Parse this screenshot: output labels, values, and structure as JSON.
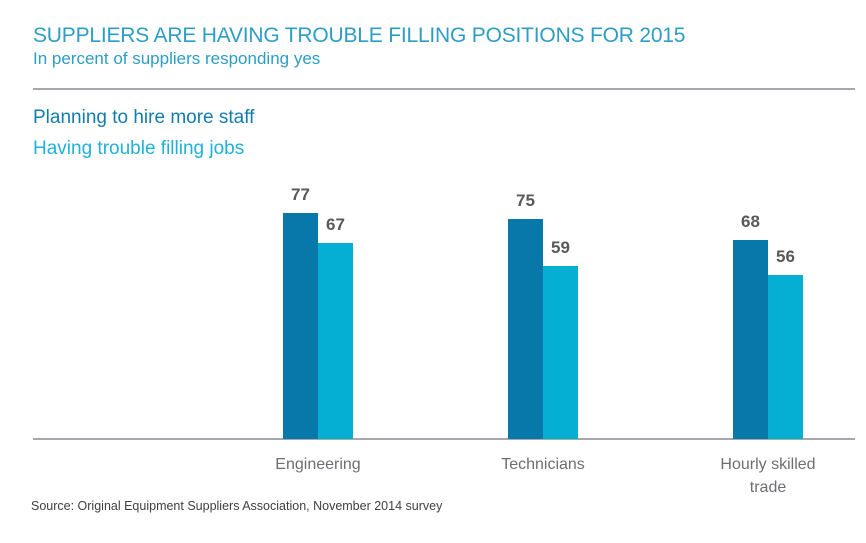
{
  "header": {
    "title": "SUPPLIERS ARE HAVING TROUBLE FILLING POSITIONS FOR 2015",
    "subtitle": "In percent of suppliers responding yes"
  },
  "legend": [
    {
      "label": "Planning to hire more staff",
      "color": "#137DAE"
    },
    {
      "label": "Having trouble filling jobs",
      "color": "#1FB2D6"
    }
  ],
  "footer": {
    "source": "Source: Original Equipment Suppliers Association, November 2014 survey"
  },
  "colors": {
    "title": "#2E9DC6",
    "axis_line": "#A6A8AB",
    "value_label": "#58595B",
    "category_label": "#6D6E71",
    "source_text": "#414042"
  },
  "chart_data": {
    "type": "bar",
    "title": "SUPPLIERS ARE HAVING TROUBLE FILLING POSITIONS FOR 2015",
    "subtitle": "In percent of suppliers responding yes",
    "unit": "percent of suppliers responding yes",
    "categories": [
      "Engineering",
      "Technicians",
      "Hourly skilled trade"
    ],
    "series": [
      {
        "name": "Planning to hire more staff",
        "color": "#0878AA",
        "values": [
          77,
          75,
          68
        ]
      },
      {
        "name": "Having trouble filling jobs",
        "color": "#05AFD3",
        "values": [
          67,
          59,
          56
        ]
      }
    ],
    "value_labels": true,
    "ylim": [
      0,
      88
    ],
    "grid": false,
    "y_axis_visible": false,
    "legend_position": "top-left",
    "source": "Source: Original Equipment Suppliers Association, November 2014 survey"
  }
}
